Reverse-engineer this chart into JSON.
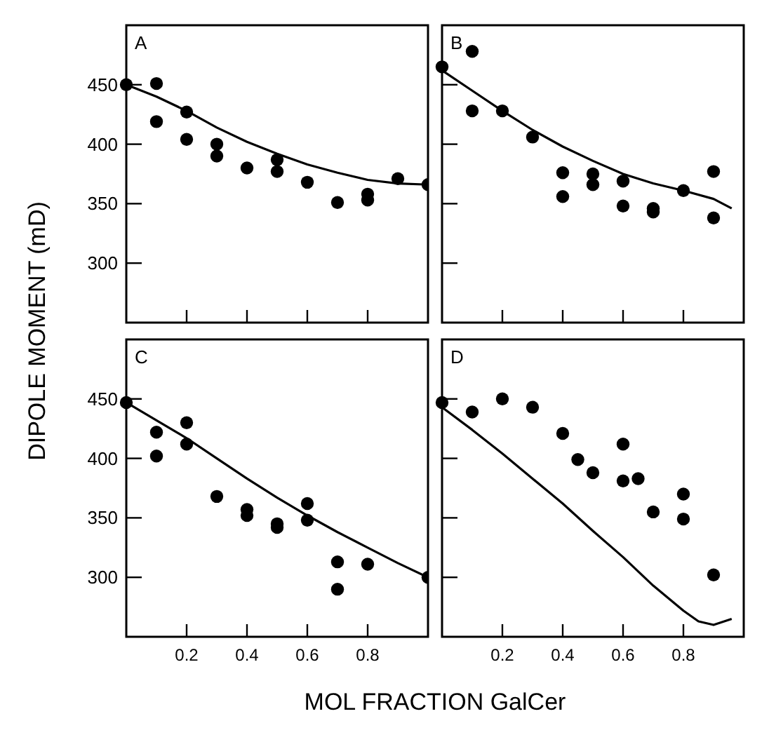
{
  "chart_data": [
    {
      "type": "scatter",
      "title": "A",
      "ylabel": "DIPOLE MOMENT (mD)",
      "xlim": [
        0,
        1
      ],
      "ylim": [
        250,
        500
      ],
      "xticks": [
        {
          "value": 0.2,
          "label": null
        },
        {
          "value": 0.4,
          "label": null
        },
        {
          "value": 0.6,
          "label": null
        },
        {
          "value": 0.8,
          "label": null
        }
      ],
      "yticks": [
        300,
        350,
        400,
        450
      ],
      "tick_labels": "y",
      "grid": false,
      "marker": "circle",
      "series": [
        {
          "color": "#000000",
          "x": [
            0,
            0.1,
            0.1,
            0.2,
            0.2,
            0.3,
            0.3,
            0.4,
            0.5,
            0.5,
            0.6,
            0.7,
            0.8,
            0.8,
            0.9,
            1.0
          ],
          "values": [
            450,
            451,
            419,
            427,
            404,
            400,
            390,
            380,
            387,
            377,
            368,
            351,
            358,
            353,
            371,
            366
          ]
        },
        {
          "type": "line",
          "color": "#000000",
          "marker": "none",
          "line_style": "solid",
          "x": [
            0,
            0.1,
            0.2,
            0.3,
            0.4,
            0.5,
            0.6,
            0.7,
            0.8,
            0.9,
            1.0
          ],
          "values": [
            450,
            440,
            428,
            414,
            402,
            392,
            383,
            376,
            370,
            367,
            366
          ]
        }
      ]
    },
    {
      "type": "scatter",
      "title": "B",
      "xlim": [
        0,
        1
      ],
      "ylim": [
        250,
        500
      ],
      "xticks": [
        {
          "value": 0.2,
          "label": null
        },
        {
          "value": 0.4,
          "label": null
        },
        {
          "value": 0.6,
          "label": null
        },
        {
          "value": 0.8,
          "label": null
        }
      ],
      "yticks": [
        {
          "value": 300,
          "label": null
        },
        {
          "value": 350,
          "label": null
        },
        {
          "value": 400,
          "label": null
        },
        {
          "value": 450,
          "label": null
        }
      ],
      "tick_labels": false,
      "grid": false,
      "marker": "circle",
      "series": [
        {
          "color": "#000000",
          "x": [
            0,
            0.1,
            0.1,
            0.2,
            0.3,
            0.4,
            0.4,
            0.5,
            0.5,
            0.6,
            0.6,
            0.7,
            0.7,
            0.8,
            0.9,
            0.9
          ],
          "values": [
            465,
            478,
            428,
            428,
            406,
            376,
            356,
            375,
            366,
            369,
            348,
            346,
            343,
            361,
            377,
            338
          ]
        },
        {
          "type": "line",
          "color": "#000000",
          "marker": "none",
          "line_style": "solid",
          "x": [
            0,
            0.1,
            0.2,
            0.3,
            0.4,
            0.5,
            0.6,
            0.7,
            0.8,
            0.9,
            0.96
          ],
          "values": [
            462,
            445,
            428,
            412,
            398,
            386,
            375,
            367,
            361,
            354,
            346
          ]
        }
      ]
    },
    {
      "type": "scatter",
      "title": "C",
      "xlabel": "MOL FRACTION GalCer",
      "xlim": [
        0,
        1
      ],
      "ylim": [
        250,
        500
      ],
      "xticks": [
        0.2,
        0.4,
        0.6,
        0.8
      ],
      "yticks": [
        300,
        350,
        400,
        450
      ],
      "grid": false,
      "marker": "circle",
      "series": [
        {
          "color": "#000000",
          "x": [
            0,
            0.1,
            0.1,
            0.2,
            0.2,
            0.3,
            0.4,
            0.4,
            0.5,
            0.5,
            0.6,
            0.6,
            0.7,
            0.7,
            0.8,
            1.0
          ],
          "values": [
            447,
            422,
            402,
            430,
            412,
            368,
            357,
            352,
            345,
            342,
            362,
            348,
            313,
            290,
            311,
            300
          ]
        },
        {
          "type": "line",
          "color": "#000000",
          "marker": "none",
          "line_style": "solid",
          "x": [
            0,
            0.1,
            0.2,
            0.3,
            0.4,
            0.5,
            0.6,
            0.7,
            0.8,
            0.9,
            1.0
          ],
          "values": [
            447,
            432,
            417,
            400,
            383,
            367,
            352,
            338,
            325,
            312,
            300
          ]
        }
      ]
    },
    {
      "type": "scatter",
      "title": "D",
      "xlim": [
        0,
        1
      ],
      "ylim": [
        250,
        500
      ],
      "xticks": [
        0.2,
        0.4,
        0.6,
        0.8
      ],
      "yticks": [
        {
          "value": 300,
          "label": null
        },
        {
          "value": 350,
          "label": null
        },
        {
          "value": 400,
          "label": null
        },
        {
          "value": 450,
          "label": null
        }
      ],
      "tick_labels": "x",
      "grid": false,
      "marker": "circle",
      "series": [
        {
          "color": "#000000",
          "x": [
            0,
            0.1,
            0.2,
            0.3,
            0.4,
            0.45,
            0.5,
            0.6,
            0.6,
            0.65,
            0.7,
            0.8,
            0.8,
            0.9
          ],
          "values": [
            447,
            439,
            450,
            443,
            421,
            399,
            388,
            412,
            381,
            383,
            355,
            370,
            349,
            302
          ]
        },
        {
          "type": "line",
          "color": "#000000",
          "marker": "none",
          "line_style": "solid",
          "x": [
            0,
            0.1,
            0.2,
            0.3,
            0.4,
            0.5,
            0.6,
            0.7,
            0.8,
            0.85,
            0.9,
            0.96
          ],
          "values": [
            443,
            424,
            404,
            383,
            362,
            339,
            317,
            293,
            272,
            263,
            260,
            265
          ]
        }
      ]
    }
  ]
}
